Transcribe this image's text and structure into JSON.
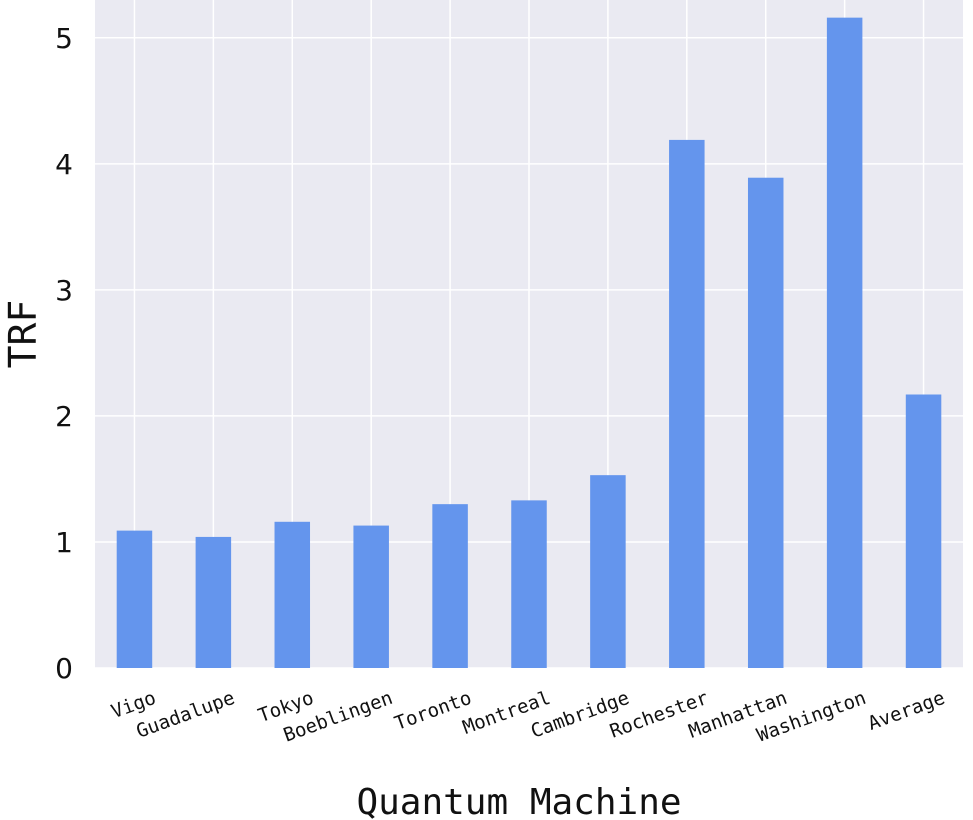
{
  "chart_data": {
    "type": "bar",
    "categories": [
      "Vigo",
      "Guadalupe",
      "Tokyo",
      "Boeblingen",
      "Toronto",
      "Montreal",
      "Cambridge",
      "Rochester",
      "Manhattan",
      "Washington",
      "Average"
    ],
    "values": [
      1.09,
      1.04,
      1.16,
      1.13,
      1.3,
      1.33,
      1.53,
      4.19,
      3.89,
      5.16,
      2.17
    ],
    "xlabel": "Quantum Machine",
    "ylabel": "TRF",
    "ylim": [
      0,
      5.3
    ],
    "yticks": [
      "0",
      "1",
      "2",
      "3",
      "4",
      "5"
    ],
    "grid": true,
    "colors": {
      "bar": "#6495ed",
      "plot_background": "#eaeaf2",
      "grid": "#ffffff"
    }
  }
}
